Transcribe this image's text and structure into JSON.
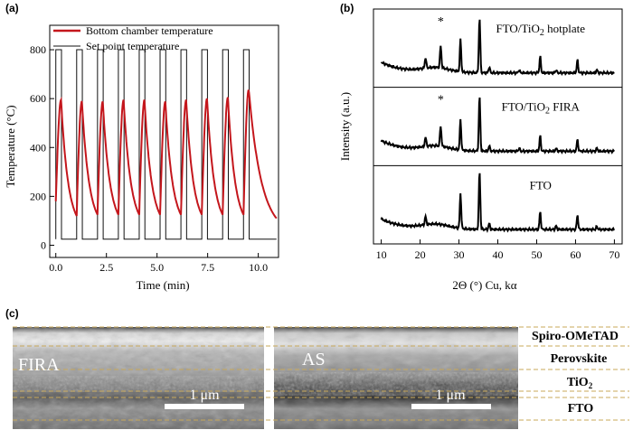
{
  "panels": {
    "a": {
      "label": "(a)"
    },
    "b": {
      "label": "(b)"
    },
    "c": {
      "label": "(c)"
    }
  },
  "chart_data": [
    {
      "type": "line",
      "panel": "(a)",
      "xlabel": "Time (min)",
      "ylabel": "Temperature (°C)",
      "xlim": [
        -0.3,
        11.0
      ],
      "ylim": [
        -50,
        900
      ],
      "xticks": [
        "0.0",
        "2.5",
        "5.0",
        "7.5",
        "10.0"
      ],
      "xtick_values": [
        0,
        2.5,
        5,
        7.5,
        10
      ],
      "yticks": [
        "0",
        "200",
        "400",
        "600",
        "800"
      ],
      "ytick_values": [
        0,
        200,
        400,
        600,
        800
      ],
      "legend_position": "top-left",
      "series": [
        {
          "name": "Bottom chamber temperature",
          "color": "#c4161c",
          "cycle_start_min": [
            0.0,
            1.03,
            2.06,
            3.09,
            4.12,
            5.15,
            6.18,
            7.21,
            8.24,
            9.27
          ],
          "peak_values": [
            595,
            590,
            588,
            595,
            595,
            588,
            595,
            600,
            605,
            638
          ],
          "trough_values": [
            180,
            120,
            125,
            125,
            125,
            125,
            125,
            125,
            125,
            125
          ],
          "final_value": 110,
          "end_min": 10.9
        },
        {
          "name": "Set point temperature",
          "color": "#111111",
          "high_value": 800,
          "low_value": 25,
          "on_duration_min": 0.28,
          "cycle_start_min": [
            0.0,
            1.03,
            2.06,
            3.09,
            4.12,
            5.15,
            6.18,
            7.21,
            8.24,
            9.27
          ],
          "end_min": 10.9
        }
      ]
    },
    {
      "type": "line",
      "panel": "(b)",
      "xlabel": "2Θ (°) Cu, kα",
      "ylabel": "Intensity (a.u.)",
      "xlim": [
        8,
        72
      ],
      "xticks": [
        "10",
        "20",
        "30",
        "40",
        "50",
        "60",
        "70"
      ],
      "xtick_values": [
        10,
        20,
        30,
        40,
        50,
        60,
        70
      ],
      "series": [
        {
          "name": "FTO/TiO2 hotplate",
          "name_parts": [
            "FTO/TiO",
            "2",
            " hotplate"
          ],
          "color": "#000000",
          "star_at": 25.3,
          "star": "*",
          "peaks": [
            [
              21.4,
              0.18
            ],
            [
              25.3,
              0.38
            ],
            [
              30.4,
              0.55
            ],
            [
              35.3,
              0.95
            ],
            [
              37.8,
              0.1
            ],
            [
              45.5,
              0.05
            ],
            [
              50.9,
              0.28
            ],
            [
              55.0,
              0.05
            ],
            [
              60.5,
              0.22
            ],
            [
              65.5,
              0.05
            ]
          ]
        },
        {
          "name": "FTO/TiO2 FIRA",
          "name_parts": [
            "FTO/TiO",
            "2",
            " FIRA"
          ],
          "color": "#000000",
          "star_at": 25.3,
          "star": "*",
          "peaks": [
            [
              21.4,
              0.16
            ],
            [
              25.3,
              0.35
            ],
            [
              30.4,
              0.52
            ],
            [
              35.3,
              0.95
            ],
            [
              37.8,
              0.09
            ],
            [
              45.5,
              0.05
            ],
            [
              50.9,
              0.26
            ],
            [
              55.0,
              0.05
            ],
            [
              60.5,
              0.2
            ],
            [
              65.5,
              0.05
            ]
          ]
        },
        {
          "name": "FTO",
          "name_parts": [
            "FTO",
            "",
            ""
          ],
          "color": "#000000",
          "peaks": [
            [
              21.4,
              0.14
            ],
            [
              30.4,
              0.6
            ],
            [
              35.3,
              1.0
            ],
            [
              37.8,
              0.1
            ],
            [
              50.9,
              0.3
            ],
            [
              55.0,
              0.06
            ],
            [
              60.5,
              0.25
            ],
            [
              65.5,
              0.05
            ]
          ]
        }
      ]
    }
  ],
  "micrographs": {
    "left": {
      "label": "FIRA",
      "scale_bar": "1 μm"
    },
    "right": {
      "label": "AS",
      "scale_bar": "1 μm"
    },
    "layer_labels": [
      {
        "main": "Spiro-OMeTAD",
        "sub": ""
      },
      {
        "main": "Perovskite",
        "sub": ""
      },
      {
        "main": "TiO",
        "sub": "2"
      },
      {
        "main": "FTO",
        "sub": ""
      }
    ]
  }
}
